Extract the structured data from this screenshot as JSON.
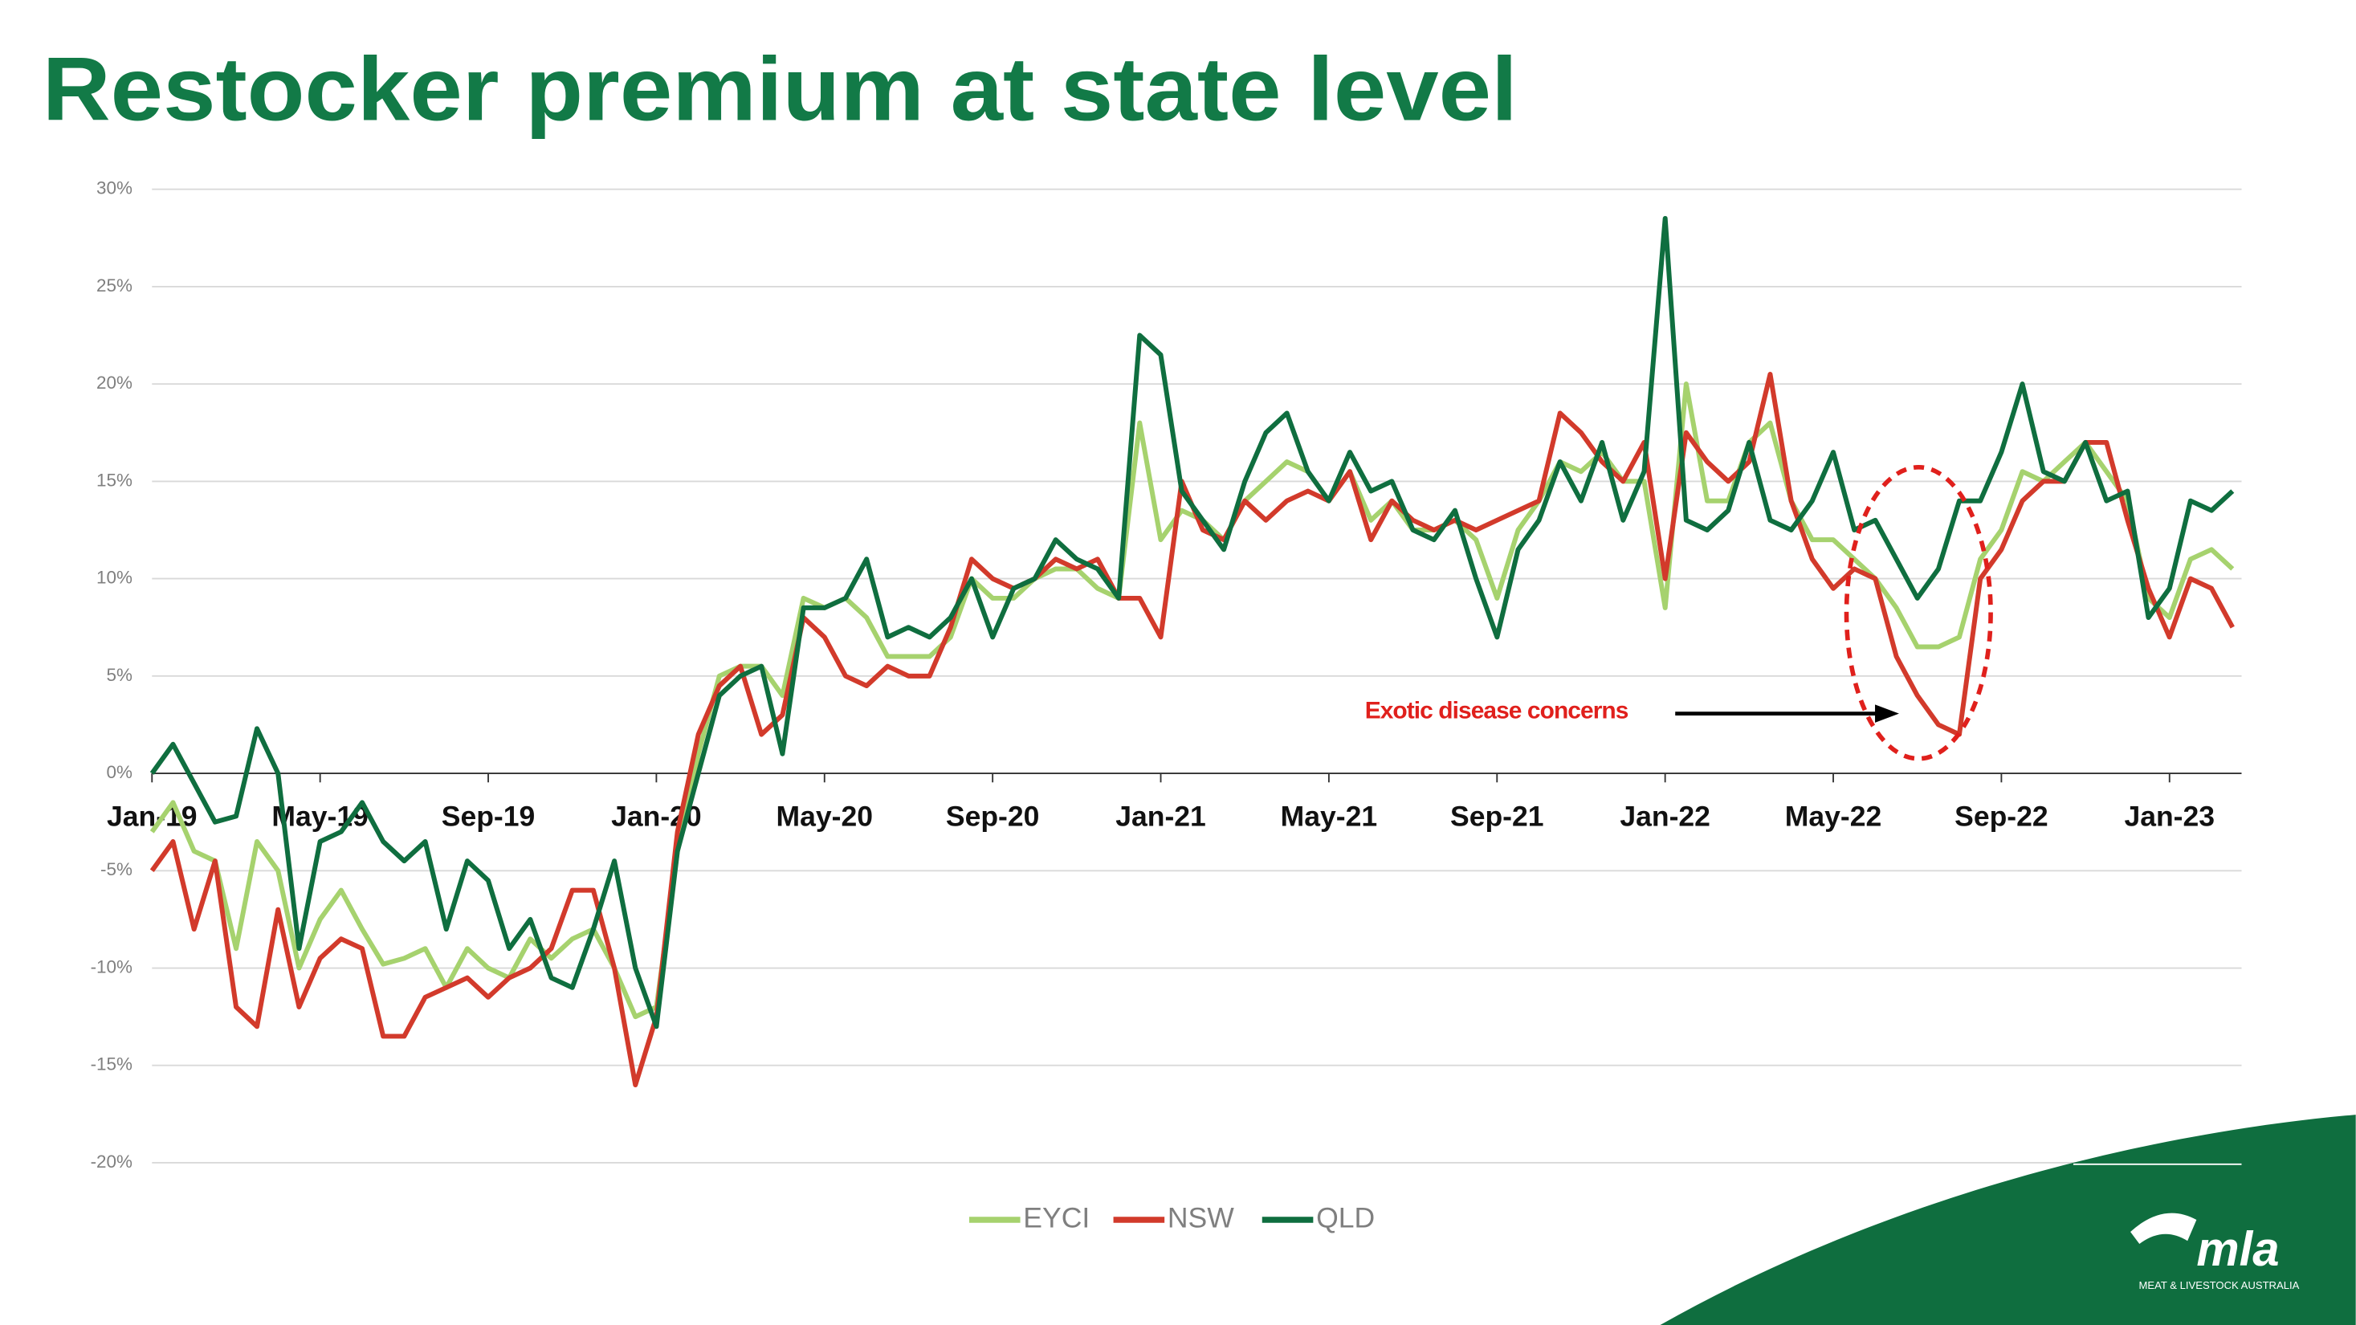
{
  "chart_data": {
    "type": "line",
    "title": "Restocker premium at state level",
    "categories": [
      "Jan-19",
      null,
      null,
      null,
      null,
      null,
      null,
      null,
      "May-19",
      null,
      null,
      null,
      null,
      null,
      null,
      null,
      "Sep-19",
      null,
      null,
      null,
      null,
      null,
      null,
      null,
      "Jan-20",
      null,
      null,
      null,
      null,
      null,
      null,
      null,
      "May-20",
      null,
      null,
      null,
      null,
      null,
      null,
      null,
      "Sep-20",
      null,
      null,
      null,
      null,
      null,
      null,
      null,
      "Jan-21",
      null,
      null,
      null,
      null,
      null,
      null,
      null,
      "May-21",
      null,
      null,
      null,
      null,
      null,
      null,
      null,
      "Sep-21",
      null,
      null,
      null,
      null,
      null,
      null,
      null,
      "Jan-22",
      null,
      null,
      null,
      null,
      null,
      null,
      null,
      "May-22",
      null,
      null,
      null,
      null,
      null,
      null,
      null,
      "Sep-22",
      null,
      null,
      null,
      null,
      null,
      null,
      null,
      "Jan-23",
      null,
      null,
      null
    ],
    "series": [
      {
        "name": "EYCI",
        "color": "#a6d26e",
        "values": [
          -3,
          -1.5,
          -4,
          -4.5,
          -9,
          -3.5,
          -5,
          -10,
          -7.5,
          -6,
          -8,
          -9.8,
          -9.5,
          -9,
          -11,
          -9,
          -10,
          -10.5,
          -8.5,
          -9.5,
          -8.5,
          -8,
          -10,
          -12.5,
          -12,
          -4,
          1,
          5,
          5.5,
          5.5,
          4,
          9,
          8.5,
          9,
          8,
          6,
          6,
          6,
          7,
          10,
          9,
          9,
          10,
          10.5,
          10.5,
          9.5,
          9,
          18,
          12,
          13.5,
          13,
          12,
          14,
          15,
          16,
          15.5,
          14,
          15.5,
          13,
          14,
          12.5,
          12.5,
          13,
          12,
          9,
          12.5,
          14,
          16,
          15.5,
          16.5,
          15,
          15,
          8.5,
          20,
          14,
          14,
          17,
          18,
          14,
          12,
          12,
          11,
          10,
          8.5,
          6.5,
          6.5,
          7,
          11,
          12.5,
          15.5,
          15,
          16,
          17,
          15.5,
          14,
          9,
          8,
          11,
          11.5,
          10.5
        ]
      },
      {
        "name": "NSW",
        "color": "#d23a2b",
        "values": [
          -5,
          -3.5,
          -8,
          -4.5,
          -12,
          -13,
          -7,
          -12,
          -9.5,
          -8.5,
          -9,
          -13.5,
          -13.5,
          -11.5,
          -11,
          -10.5,
          -11.5,
          -10.5,
          -10,
          -9,
          -6,
          -6,
          -10,
          -16,
          -12.5,
          -3,
          2,
          4.5,
          5.5,
          2,
          3,
          8,
          7,
          5,
          4.5,
          5.5,
          5,
          5,
          7.5,
          11,
          10,
          9.5,
          10,
          11,
          10.5,
          11,
          9,
          9,
          7,
          15,
          12.5,
          12,
          14,
          13,
          14,
          14.5,
          14,
          15.5,
          12,
          14,
          13,
          12.5,
          13,
          12.5,
          13,
          13.5,
          14,
          18.5,
          17.5,
          16,
          15,
          17,
          10,
          17.5,
          16,
          15,
          16,
          20.5,
          14,
          11,
          9.5,
          10.5,
          10,
          6,
          4,
          2.5,
          2,
          10,
          11.5,
          14,
          15,
          15,
          17,
          17,
          13,
          9.5,
          7,
          10,
          9.5,
          7.5
        ]
      },
      {
        "name": "QLD",
        "color": "#0f6e3f",
        "values": [
          0,
          1.5,
          -0.5,
          -2.5,
          -2.2,
          2.3,
          0,
          -9,
          -3.5,
          -3,
          -1.5,
          -3.5,
          -4.5,
          -3.5,
          -8,
          -4.5,
          -5.5,
          -9,
          -7.5,
          -10.5,
          -11,
          -8,
          -4.5,
          -10,
          -13,
          -4,
          0,
          4,
          5,
          5.5,
          1,
          8.5,
          8.5,
          9,
          11,
          7,
          7.5,
          7,
          8,
          10,
          7,
          9.5,
          10,
          12,
          11,
          10.5,
          9,
          22.5,
          21.5,
          14.5,
          13,
          11.5,
          15,
          17.5,
          18.5,
          15.5,
          14,
          16.5,
          14.5,
          15,
          12.5,
          12,
          13.5,
          10,
          7,
          11.5,
          13,
          16,
          14,
          17,
          13,
          15.5,
          28.5,
          13,
          12.5,
          13.5,
          17,
          13,
          12.5,
          14,
          16.5,
          12.5,
          13,
          11,
          9,
          10.5,
          14,
          14,
          16.5,
          20,
          15.5,
          15,
          17,
          14,
          14.5,
          8,
          9.5,
          14,
          13.5,
          14.5
        ]
      }
    ],
    "ylim": [
      -20,
      30
    ],
    "yticks": [
      {
        "value": -20,
        "label": "-20%"
      },
      {
        "value": -15,
        "label": "-15%"
      },
      {
        "value": -10,
        "label": "-10%"
      },
      {
        "value": -5,
        "label": "-5%"
      },
      {
        "value": 0,
        "label": "0%"
      },
      {
        "value": 5,
        "label": "5%"
      },
      {
        "value": 10,
        "label": "10%"
      },
      {
        "value": 15,
        "label": "15%"
      },
      {
        "value": 20,
        "label": "20%"
      },
      {
        "value": 25,
        "label": "25%"
      },
      {
        "value": 30,
        "label": "30%"
      }
    ],
    "grid": true,
    "legend": "bottom",
    "annotation": "Exotic disease concerns",
    "logo": {
      "text": "mla",
      "subtitle": "MEAT & LIVESTOCK AUSTRALIA"
    }
  }
}
